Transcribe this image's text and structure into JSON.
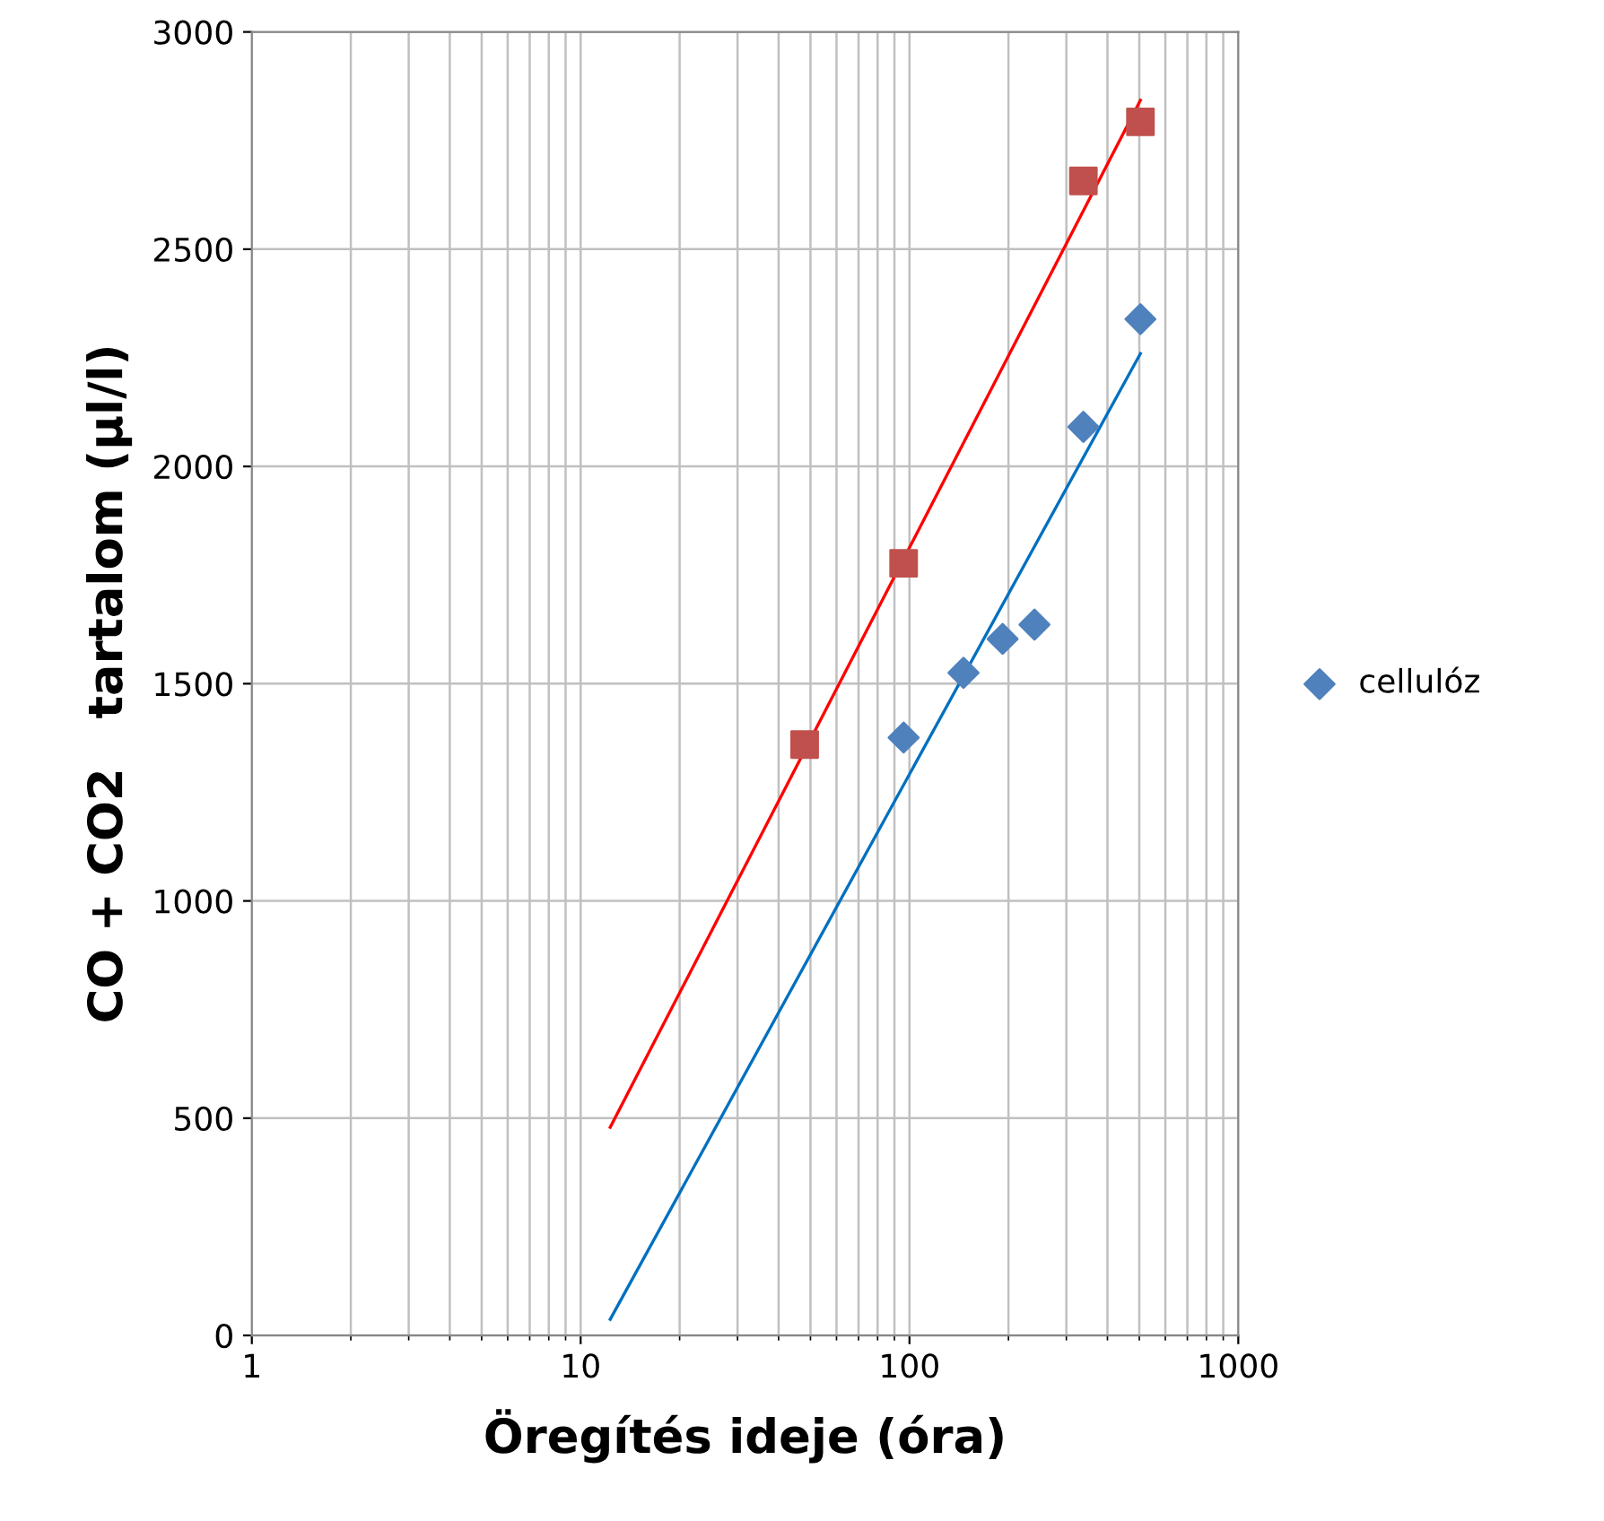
{
  "chart_data": {
    "type": "scatter",
    "xlabel": "Öregítés ideje (óra)",
    "ylabel": "CO + CO2   tartalom (µl/l)",
    "log": "x",
    "xlim": [
      1,
      1000
    ],
    "xticks": [
      1,
      10,
      100,
      1000
    ],
    "ylim": [
      0,
      3000
    ],
    "yticks": [
      0,
      500,
      1000,
      1500,
      2000,
      2500,
      3000
    ],
    "grid": true,
    "legend": "right",
    "series": [
      {
        "name": "cellulóz",
        "color": "#4f81bd",
        "marker": "diamond",
        "x": [
          96,
          146,
          192,
          240,
          338,
          504
        ],
        "values": [
          1376,
          1525,
          1603,
          1636,
          2091,
          2339
        ]
      },
      {
        "color": "#c0504d",
        "marker": "square",
        "x": [
          48,
          96,
          338,
          504
        ],
        "values": [
          1360,
          1777,
          2657,
          2793
        ]
      },
      {
        "type": "line",
        "color": "#0070c0",
        "marker": "none",
        "x": [
          12.3,
          504
        ],
        "values": [
          37,
          2260
        ]
      },
      {
        "type": "line",
        "color": "#ff0000",
        "marker": "none",
        "x": [
          12.3,
          504
        ],
        "values": [
          479,
          2843
        ]
      }
    ]
  }
}
